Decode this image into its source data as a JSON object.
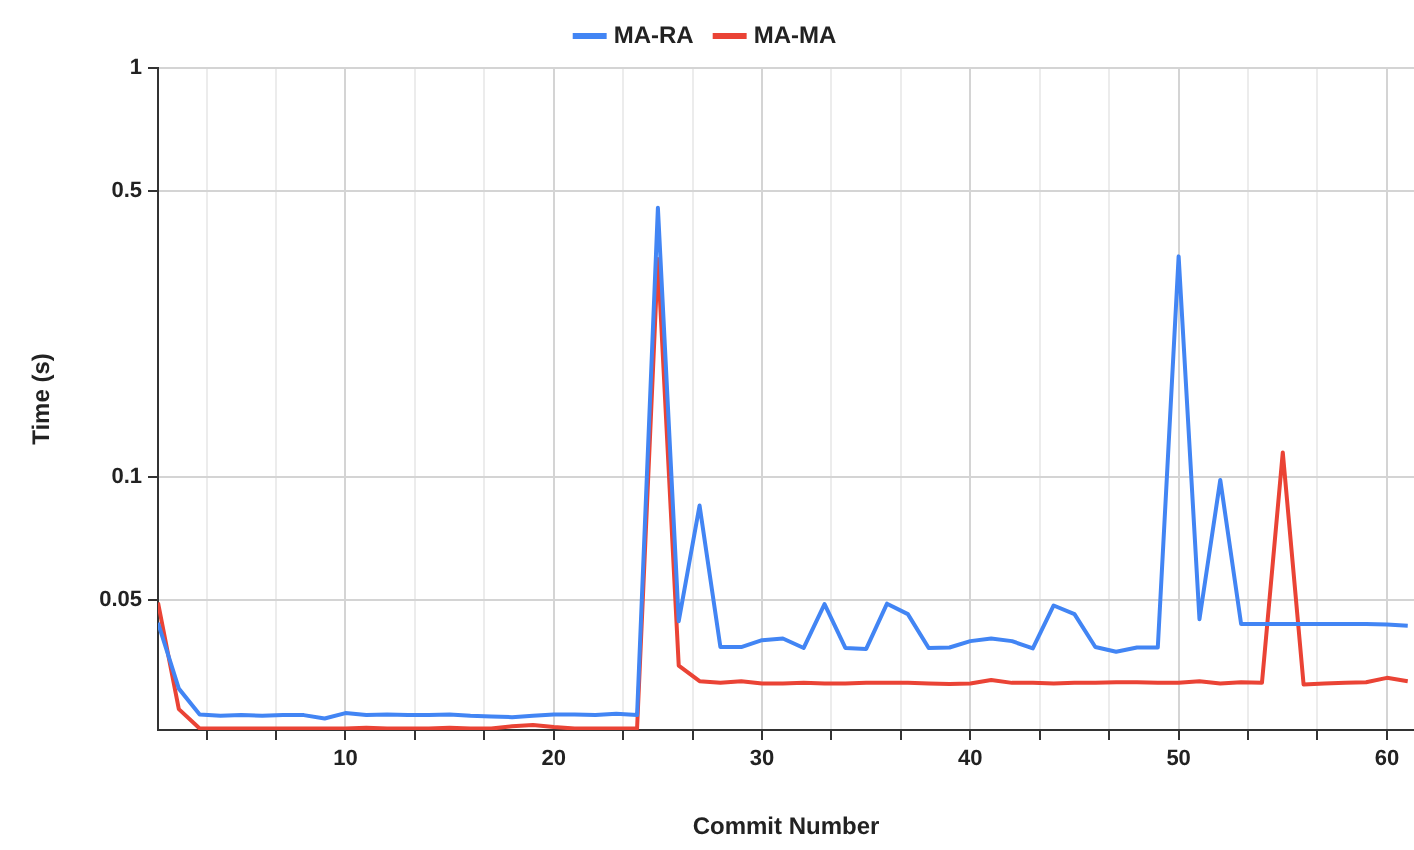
{
  "chart_data": {
    "type": "line",
    "xlabel": "Commit Number",
    "ylabel": "Time (s)",
    "log": "y",
    "grid": true,
    "legend": "top",
    "marker": "none",
    "line_style": "solid",
    "x": [
      1,
      2,
      3,
      4,
      5,
      6,
      7,
      8,
      9,
      10,
      11,
      12,
      13,
      14,
      15,
      16,
      17,
      18,
      19,
      20,
      21,
      22,
      23,
      24,
      25,
      26,
      27,
      28,
      29,
      30,
      31,
      32,
      33,
      34,
      35,
      36,
      37,
      38,
      39,
      40,
      41,
      42,
      43,
      44,
      45,
      46,
      47,
      48,
      49,
      50,
      51,
      52,
      53,
      54,
      55,
      56,
      57,
      58,
      59,
      60,
      61
    ],
    "xlim": [
      1,
      61.3
    ],
    "xticks": [
      {
        "value": 3.333,
        "label": null
      },
      {
        "value": 6.667,
        "label": null
      },
      10,
      {
        "value": 13.333,
        "label": null
      },
      {
        "value": 16.667,
        "label": null
      },
      20,
      {
        "value": 23.333,
        "label": null
      },
      {
        "value": 26.667,
        "label": null
      },
      30,
      {
        "value": 33.333,
        "label": null
      },
      {
        "value": 36.667,
        "label": null
      },
      40,
      {
        "value": 43.333,
        "label": null
      },
      {
        "value": 46.667,
        "label": null
      },
      50,
      {
        "value": 53.333,
        "label": null
      },
      {
        "value": 56.667,
        "label": null
      },
      60
    ],
    "ylim": [
      0.024,
      1
    ],
    "yticks": [
      0.05,
      0.1,
      0.5,
      1
    ],
    "series": [
      {
        "name": "MA-RA",
        "color": "#4285f4",
        "values": [
          0.0439,
          0.0303,
          0.0262,
          0.026,
          0.0261,
          0.026,
          0.0261,
          0.0261,
          0.0256,
          0.0264,
          0.0261,
          0.0262,
          0.0261,
          0.0261,
          0.0262,
          0.026,
          0.0259,
          0.0258,
          0.026,
          0.0262,
          0.0262,
          0.0261,
          0.0263,
          0.0261,
          0.455,
          0.0443,
          0.085,
          0.0383,
          0.0383,
          0.0398,
          0.0402,
          0.0381,
          0.0488,
          0.0381,
          0.0379,
          0.0489,
          0.0461,
          0.0381,
          0.0382,
          0.0396,
          0.0402,
          0.0396,
          0.038,
          0.0484,
          0.0461,
          0.0383,
          0.0373,
          0.0382,
          0.0382,
          0.346,
          0.0448,
          0.0982,
          0.0436,
          0.0436,
          0.0436,
          0.0436,
          0.0436,
          0.0436,
          0.0436,
          0.0435,
          0.0432
        ]
      },
      {
        "name": "MA-MA",
        "color": "#ea4335",
        "values": [
          0.0492,
          0.027,
          0.0242,
          0.0242,
          0.0242,
          0.0242,
          0.0242,
          0.0242,
          0.0242,
          0.0242,
          0.0243,
          0.0242,
          0.0242,
          0.0242,
          0.0243,
          0.0242,
          0.0242,
          0.0245,
          0.0247,
          0.0244,
          0.0242,
          0.0242,
          0.0242,
          0.0242,
          0.341,
          0.0345,
          0.0316,
          0.0313,
          0.0316,
          0.0312,
          0.0312,
          0.0313,
          0.0312,
          0.0312,
          0.0313,
          0.0313,
          0.0313,
          0.0312,
          0.0311,
          0.0312,
          0.0318,
          0.0313,
          0.0313,
          0.0312,
          0.0313,
          0.0313,
          0.0314,
          0.0314,
          0.0313,
          0.0313,
          0.0316,
          0.0312,
          0.0314,
          0.0313,
          0.1146,
          0.031,
          0.0312,
          0.0313,
          0.0314,
          0.0322,
          0.0316
        ]
      }
    ]
  }
}
